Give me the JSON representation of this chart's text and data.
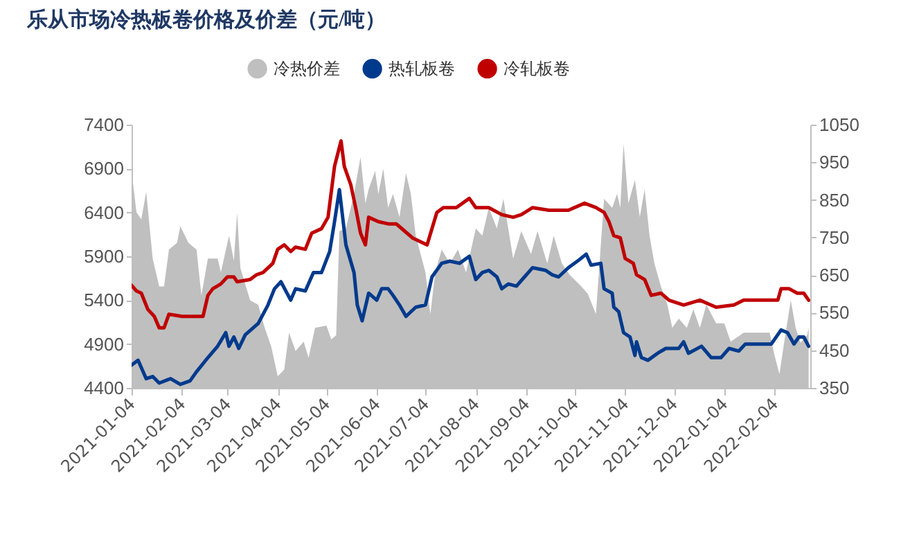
{
  "chart_data": {
    "type": "line",
    "title": "乐从市场冷热板卷价格及价差（元/吨）",
    "series": [
      {
        "name": "冷热价差",
        "type": "area",
        "axis": "y2",
        "color": "#bfbfbf",
        "x": [
          "2021-01-04",
          "2021-01-07",
          "2021-01-10",
          "2021-01-13",
          "2021-01-17",
          "2021-01-21",
          "2021-01-24",
          "2021-01-27",
          "2021-02-01",
          "2021-02-03",
          "2021-02-08",
          "2021-02-13",
          "2021-02-16",
          "2021-02-20",
          "2021-02-26",
          "2021-02-28",
          "2021-03-05",
          "2021-03-08",
          "2021-03-10",
          "2021-03-12",
          "2021-03-18",
          "2021-03-23",
          "2021-03-27",
          "2021-03-31",
          "2021-04-04",
          "2021-04-08",
          "2021-04-11",
          "2021-04-15",
          "2021-04-20",
          "2021-04-23",
          "2021-04-27",
          "2021-05-04",
          "2021-05-07",
          "2021-05-10",
          "2021-05-12",
          "2021-05-16",
          "2021-05-21",
          "2021-05-25",
          "2021-05-28",
          "2021-05-30",
          "2021-06-03",
          "2021-06-05",
          "2021-06-08",
          "2021-06-11",
          "2021-06-14",
          "2021-06-18",
          "2021-06-22",
          "2021-06-25",
          "2021-06-28",
          "2021-07-04",
          "2021-07-07",
          "2021-07-10",
          "2021-07-14",
          "2021-07-19",
          "2021-07-24",
          "2021-07-29",
          "2021-08-04",
          "2021-08-08",
          "2021-08-12",
          "2021-08-17",
          "2021-08-21",
          "2021-08-27",
          "2021-09-01",
          "2021-09-07",
          "2021-09-11",
          "2021-09-17",
          "2021-09-21",
          "2021-09-26",
          "2021-10-01",
          "2021-10-08",
          "2021-10-12",
          "2021-10-17",
          "2021-10-22",
          "2021-10-27",
          "2021-10-30",
          "2021-11-01",
          "2021-11-03",
          "2021-11-06",
          "2021-11-10",
          "2021-11-13",
          "2021-11-16",
          "2021-11-19",
          "2021-11-22",
          "2021-11-26",
          "2021-11-30",
          "2021-12-03",
          "2021-12-07",
          "2021-12-12",
          "2021-12-16",
          "2021-12-20",
          "2021-12-24",
          "2021-12-30",
          "2022-01-04",
          "2022-01-08",
          "2022-01-16",
          "2022-02-01",
          "2022-02-04",
          "2022-02-07",
          "2022-02-10",
          "2022-02-14",
          "2022-02-17",
          "2022-02-20",
          "2022-02-24",
          "2022-02-25"
        ],
        "values": [
          927,
          817,
          798,
          872,
          694,
          620,
          620,
          718,
          736,
          780,
          736,
          718,
          596,
          694,
          694,
          657,
          755,
          688,
          817,
          669,
          583,
          571,
          510,
          460,
          381,
          399,
          497,
          448,
          473,
          430,
          510,
          516,
          479,
          490,
          767,
          774,
          866,
          964,
          841,
          878,
          927,
          866,
          933,
          829,
          866,
          804,
          921,
          866,
          755,
          657,
          546,
          657,
          718,
          681,
          718,
          657,
          774,
          755,
          829,
          774,
          853,
          694,
          767,
          706,
          767,
          681,
          755,
          681,
          650,
          620,
          600,
          546,
          853,
          829,
          866,
          829,
          1000,
          841,
          903,
          804,
          878,
          755,
          681,
          620,
          571,
          510,
          534,
          510,
          559,
          510,
          571,
          522,
          522,
          473,
          497,
          497,
          436,
          387,
          473,
          583,
          510,
          470,
          490,
          510
        ]
      },
      {
        "name": "热轧板卷",
        "color": "#003a8c",
        "x": [
          "2021-01-04",
          "2021-01-08",
          "2021-01-13",
          "2021-01-17",
          "2021-01-21",
          "2021-01-28",
          "2021-02-03",
          "2021-02-09",
          "2021-02-13",
          "2021-02-20",
          "2021-02-26",
          "2021-03-03",
          "2021-03-05",
          "2021-03-08",
          "2021-03-11",
          "2021-03-15",
          "2021-03-23",
          "2021-03-29",
          "2021-04-02",
          "2021-04-06",
          "2021-04-12",
          "2021-04-15",
          "2021-04-21",
          "2021-04-26",
          "2021-05-01",
          "2021-05-06",
          "2021-05-09",
          "2021-05-12",
          "2021-05-16",
          "2021-05-21",
          "2021-05-23",
          "2021-05-26",
          "2021-05-30",
          "2021-06-04",
          "2021-06-07",
          "2021-06-11",
          "2021-06-14",
          "2021-06-18",
          "2021-06-22",
          "2021-06-28",
          "2021-07-04",
          "2021-07-08",
          "2021-07-14",
          "2021-07-19",
          "2021-07-25",
          "2021-07-31",
          "2021-08-04",
          "2021-08-08",
          "2021-08-12",
          "2021-08-17",
          "2021-08-20",
          "2021-08-24",
          "2021-08-29",
          "2021-09-03",
          "2021-09-08",
          "2021-09-16",
          "2021-09-20",
          "2021-09-24",
          "2021-09-30",
          "2021-10-06",
          "2021-10-11",
          "2021-10-14",
          "2021-10-20",
          "2021-10-22",
          "2021-10-27",
          "2021-10-28",
          "2021-10-31",
          "2021-11-03",
          "2021-11-07",
          "2021-11-10",
          "2021-11-11",
          "2021-11-14",
          "2021-11-18",
          "2021-11-24",
          "2021-11-29",
          "2021-12-07",
          "2021-12-10",
          "2021-12-13",
          "2021-12-21",
          "2021-12-27",
          "2022-01-02",
          "2022-01-07",
          "2022-01-13",
          "2022-01-17",
          "2022-02-02",
          "2022-02-08",
          "2022-02-12",
          "2022-02-16",
          "2022-02-19",
          "2022-02-22",
          "2022-02-25"
        ],
        "values": [
          4660,
          4715,
          4505,
          4530,
          4455,
          4505,
          4440,
          4480,
          4585,
          4745,
          4875,
          5030,
          4875,
          4980,
          4850,
          5005,
          5135,
          5345,
          5530,
          5610,
          5400,
          5530,
          5505,
          5715,
          5715,
          5955,
          6295,
          6660,
          6030,
          5715,
          5345,
          5165,
          5480,
          5400,
          5530,
          5530,
          5455,
          5345,
          5215,
          5320,
          5345,
          5665,
          5820,
          5845,
          5820,
          5900,
          5635,
          5715,
          5740,
          5665,
          5530,
          5585,
          5560,
          5665,
          5770,
          5740,
          5690,
          5665,
          5770,
          5850,
          5925,
          5800,
          5820,
          5530,
          5480,
          5320,
          5270,
          5030,
          4980,
          4770,
          4925,
          4745,
          4715,
          4795,
          4850,
          4850,
          4925,
          4795,
          4875,
          4745,
          4745,
          4850,
          4820,
          4900,
          4900,
          5060,
          5030,
          4900,
          4980,
          4980,
          4875
        ]
      },
      {
        "name": "冷轧板卷",
        "color": "#c00000",
        "x": [
          "2021-01-04",
          "2021-01-07",
          "2021-01-10",
          "2021-01-14",
          "2021-01-18",
          "2021-01-21",
          "2021-01-24",
          "2021-01-27",
          "2021-02-04",
          "2021-02-17",
          "2021-02-20",
          "2021-02-23",
          "2021-02-28",
          "2021-03-04",
          "2021-03-08",
          "2021-03-10",
          "2021-03-18",
          "2021-03-22",
          "2021-03-26",
          "2021-04-01",
          "2021-04-04",
          "2021-04-08",
          "2021-04-12",
          "2021-04-15",
          "2021-04-21",
          "2021-04-25",
          "2021-05-01",
          "2021-05-05",
          "2021-05-09",
          "2021-05-13",
          "2021-05-15",
          "2021-05-19",
          "2021-05-22",
          "2021-05-25",
          "2021-05-28",
          "2021-05-30",
          "2021-06-05",
          "2021-06-11",
          "2021-06-16",
          "2021-06-21",
          "2021-06-26",
          "2021-07-05",
          "2021-07-11",
          "2021-07-15",
          "2021-07-23",
          "2021-07-31",
          "2021-08-04",
          "2021-08-12",
          "2021-08-20",
          "2021-08-27",
          "2021-09-01",
          "2021-09-08",
          "2021-09-18",
          "2021-09-30",
          "2021-10-10",
          "2021-10-17",
          "2021-10-22",
          "2021-10-25",
          "2021-10-28",
          "2021-11-01",
          "2021-11-04",
          "2021-11-09",
          "2021-11-11",
          "2021-11-16",
          "2021-11-20",
          "2021-11-26",
          "2021-12-01",
          "2021-12-10",
          "2021-12-20",
          "2021-12-30",
          "2022-01-10",
          "2022-01-16",
          "2022-02-06",
          "2022-02-08",
          "2022-02-13",
          "2022-02-18",
          "2022-02-22",
          "2022-02-25"
        ],
        "values": [
          5570,
          5505,
          5480,
          5295,
          5215,
          5085,
          5085,
          5240,
          5215,
          5215,
          5455,
          5530,
          5585,
          5665,
          5665,
          5610,
          5635,
          5690,
          5715,
          5820,
          5980,
          6030,
          5955,
          6005,
          5980,
          6165,
          6215,
          6345,
          6925,
          7215,
          6925,
          6715,
          6455,
          6165,
          6030,
          6345,
          6295,
          6270,
          6270,
          6190,
          6110,
          6030,
          6400,
          6455,
          6455,
          6560,
          6455,
          6455,
          6375,
          6345,
          6375,
          6455,
          6425,
          6425,
          6505,
          6455,
          6400,
          6295,
          6135,
          6110,
          5875,
          5820,
          5690,
          5635,
          5455,
          5480,
          5400,
          5345,
          5400,
          5320,
          5345,
          5400,
          5400,
          5530,
          5530,
          5480,
          5480,
          5400
        ]
      }
    ],
    "xlim": [
      "2021-01-04",
      "2022-02-26"
    ],
    "xticks": [
      "2021-01-04",
      "2021-02-04",
      "2021-03-04",
      "2021-04-04",
      "2021-05-04",
      "2021-06-04",
      "2021-07-04",
      "2021-08-04",
      "2021-09-04",
      "2021-10-04",
      "2021-11-04",
      "2021-12-04",
      "2022-01-04",
      "2022-02-04"
    ],
    "ylim": [
      4400,
      7400
    ],
    "yticks": [
      4400,
      4900,
      5400,
      5900,
      6400,
      6900,
      7400
    ],
    "y2lim": [
      350,
      1050
    ],
    "y2ticks": [
      350,
      450,
      550,
      650,
      750,
      850,
      950,
      1050
    ],
    "legend": "top",
    "grid": false,
    "line_style": "solid",
    "marker": "none"
  }
}
